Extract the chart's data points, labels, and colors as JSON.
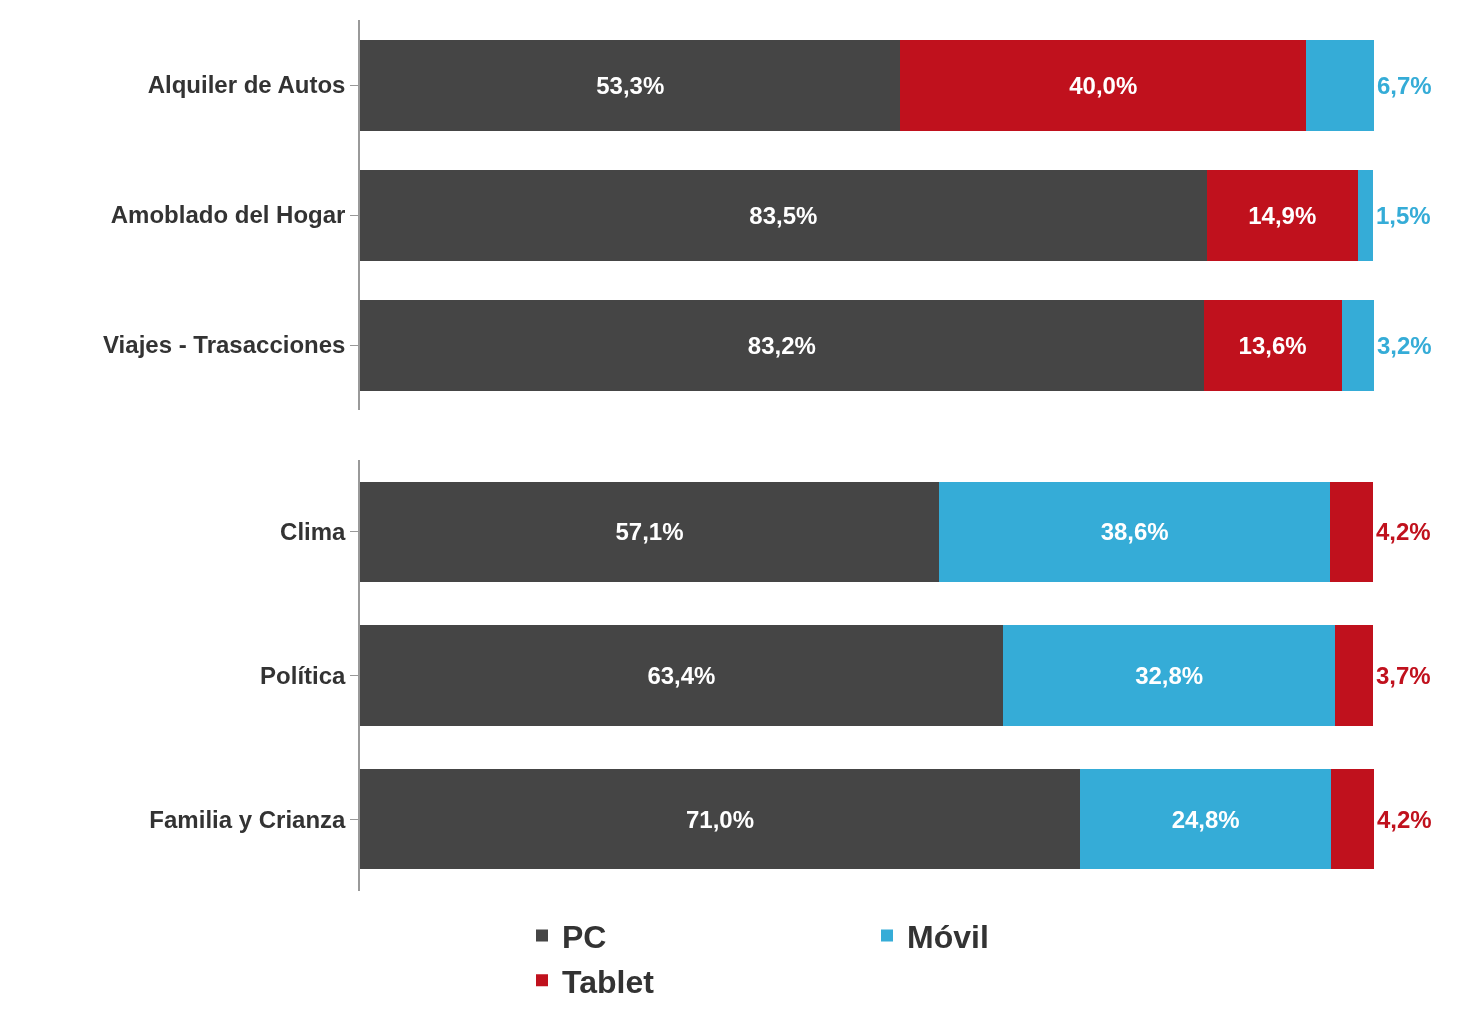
{
  "chart_data": [
    {
      "type": "bar",
      "orientation": "horizontal",
      "stacked": true,
      "legend": false,
      "tick_labels": "y",
      "xlim": [
        0,
        100
      ],
      "categories": [
        "Alquiler de Autos",
        "Amoblado del Hogar",
        "Viajes - Trasacciones"
      ],
      "series": [
        {
          "color": "#454545",
          "values": [
            53.3,
            83.5,
            83.2
          ],
          "value_labels": [
            "53,3%",
            "83,5%",
            "83,2%"
          ]
        },
        {
          "color": "#c0111d",
          "values": [
            40.0,
            14.9,
            13.6
          ],
          "value_labels": [
            "40,0%",
            "14,9%",
            "13,6%"
          ]
        },
        {
          "color": "#35acd7",
          "values": [
            6.7,
            1.5,
            3.2
          ],
          "value_labels": [
            "6,7%",
            "1,5%",
            "3,2%"
          ]
        }
      ]
    },
    {
      "type": "bar",
      "orientation": "horizontal",
      "stacked": true,
      "legend": "bottom",
      "tick_labels": "y",
      "xlim": [
        0,
        100
      ],
      "categories": [
        "Clima",
        "Política",
        "Familia y Crianza"
      ],
      "series": [
        {
          "name": "PC",
          "color": "#454545",
          "values": [
            57.1,
            63.4,
            71.0
          ],
          "value_labels": [
            "57,1%",
            "63,4%",
            "71,0%"
          ]
        },
        {
          "name": "Móvil",
          "color": "#35acd7",
          "values": [
            38.6,
            32.8,
            24.8
          ],
          "value_labels": [
            "38,6%",
            "32,8%",
            "24,8%"
          ]
        },
        {
          "name": "Tablet",
          "color": "#c0111d",
          "values": [
            4.2,
            3.7,
            4.2
          ],
          "value_labels": [
            "4,2%",
            "3,7%",
            "4,2%"
          ]
        }
      ]
    }
  ]
}
